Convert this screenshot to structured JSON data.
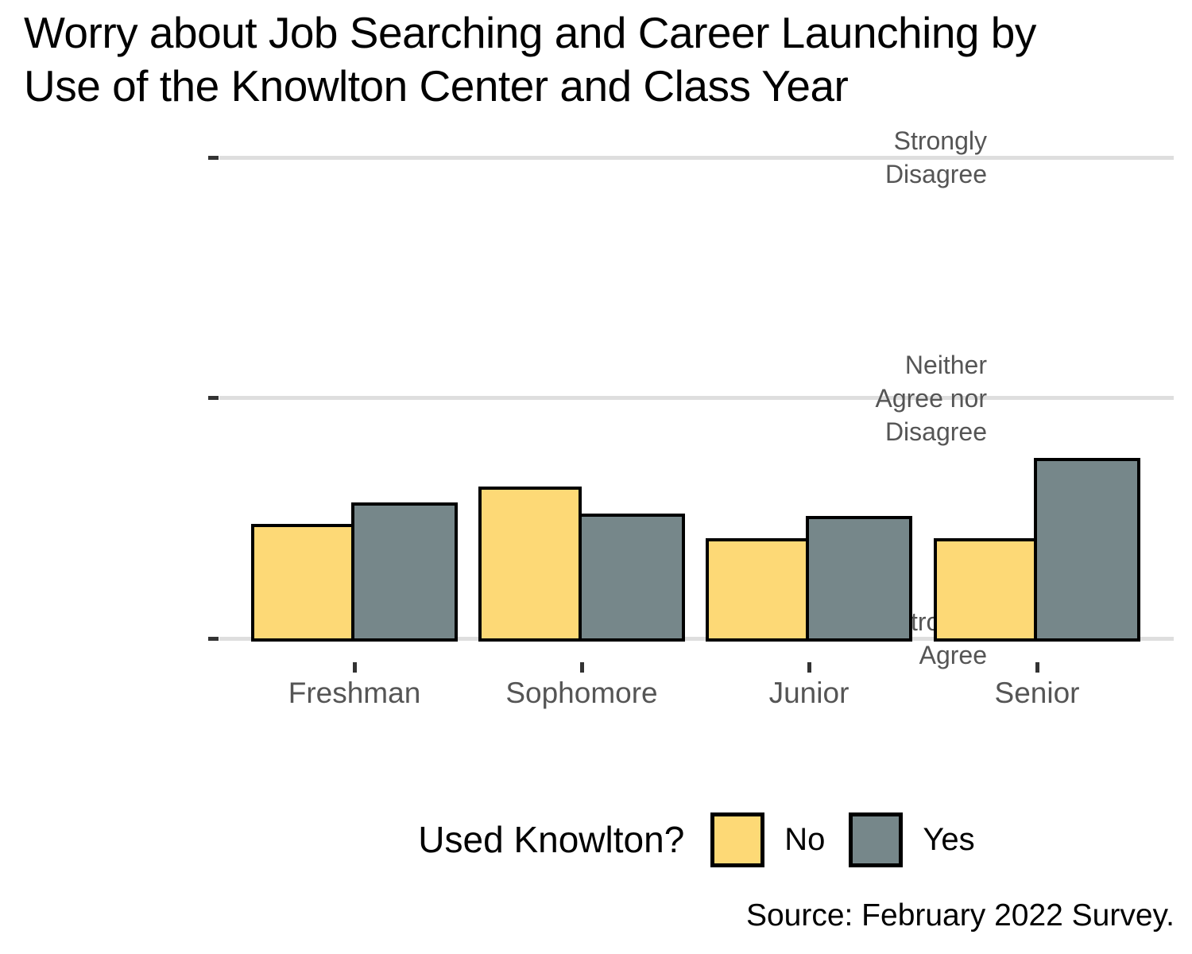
{
  "page": {
    "title_line1": "Worry about Job Searching and Career Launching by",
    "title_line2": "Use of the Knowlton Center and Class Year",
    "source": "Source: February 2022 Survey."
  },
  "chart_data": {
    "type": "bar",
    "title": "Worry about Job Searching and Career Launching by Use of the Knowlton Center and Class Year",
    "orientation": "vertical-grouped",
    "categories": [
      "Freshman",
      "Sophomore",
      "Junior",
      "Senior"
    ],
    "series": [
      {
        "name": "No",
        "color": "#FDD976",
        "values": [
          1.95,
          2.26,
          1.83,
          1.83
        ]
      },
      {
        "name": "Yes",
        "color": "#76878A",
        "values": [
          2.13,
          2.04,
          2.02,
          2.5
        ]
      }
    ],
    "xlabel": "",
    "ylabel": "",
    "y_axis": {
      "range": [
        1,
        5
      ],
      "tick_values": [
        1,
        3,
        5
      ],
      "tick_labels": [
        "Strongly Agree",
        "Neither Agree nor Disagree",
        "Strongly Disagree"
      ],
      "tick_label_lines": [
        [
          "Strongly",
          "Agree"
        ],
        [
          "Neither",
          "Agree nor",
          "Disagree"
        ],
        [
          "Strongly",
          "Disagree"
        ]
      ]
    },
    "grid": "horizontal-only",
    "legend": {
      "title": "Used Knowlton?",
      "labels": [
        "No",
        "Yes"
      ],
      "position": "bottom-center"
    },
    "source": "Source: February 2022 Survey.",
    "colors": {
      "background": "#FFFFFF",
      "grid": "#DEDEDE",
      "tick": "#333333",
      "axis_text": "#555555",
      "bar_border": "#000000",
      "text": "#000000"
    }
  }
}
